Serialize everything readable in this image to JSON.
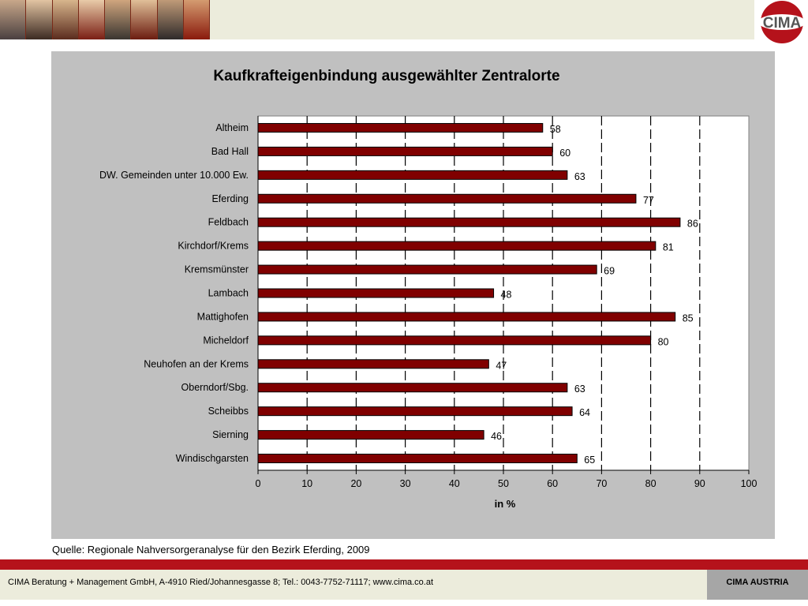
{
  "colors": {
    "bar": "#800000",
    "panel": "#c0c0c0",
    "footer_red": "#b5121b",
    "footer_band": "#ececdc"
  },
  "header": {
    "logo_text": "CIMA"
  },
  "chart_data": {
    "type": "bar",
    "orientation": "horizontal",
    "title": "Kaufkrafteigenbindung ausgewählter Zentralorte",
    "xlabel": "in %",
    "ylabel": "",
    "xlim": [
      0,
      100
    ],
    "ticks": [
      "0",
      "10",
      "20",
      "30",
      "40",
      "50",
      "60",
      "70",
      "80",
      "90",
      "100"
    ],
    "grid": "vertical dashed",
    "categories": [
      "Altheim",
      "Bad Hall",
      "DW. Gemeinden unter 10.000 Ew.",
      "Eferding",
      "Feldbach",
      "Kirchdorf/Krems",
      "Kremsmünster",
      "Lambach",
      "Mattighofen",
      "Micheldorf",
      "Neuhofen an der Krems",
      "Oberndorf/Sbg.",
      "Scheibbs",
      "Sierning",
      "Windischgarsten"
    ],
    "values": [
      58,
      60,
      63,
      77,
      86,
      81,
      69,
      48,
      85,
      80,
      47,
      63,
      64,
      46,
      65
    ]
  },
  "source": "Quelle: Regionale Nahversorgeranalyse für den Bezirk Eferding, 2009",
  "footer": {
    "text": "CIMA Beratung + Management GmbH, A-4910 Ried/Johannesgasse 8; Tel.: 0043-7752-71117; www.cima.co.at",
    "brand": "CIMA AUSTRIA"
  }
}
